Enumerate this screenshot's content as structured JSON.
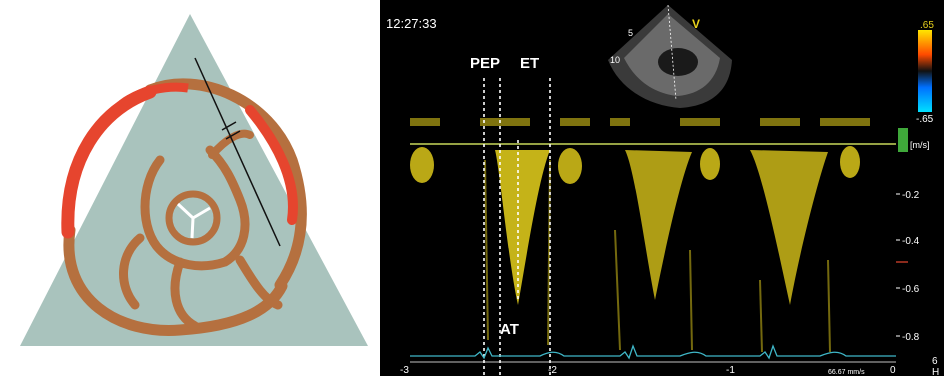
{
  "left_diagram": {
    "colors": {
      "background": "#ffffff",
      "triangle": "#a9c3bd",
      "red_wall": "#e6452e",
      "brown_wall": "#b5703f",
      "line": "#111111"
    }
  },
  "doppler": {
    "timestamp": "12:27:33",
    "probe_marker": "V",
    "depth_labels": [
      "5",
      "10"
    ],
    "labels": {
      "pep": "PEP",
      "et": "ET",
      "at": "AT"
    },
    "color_scale": {
      "top": ".65",
      "bottom": "-.65",
      "unit": "[m/s]"
    },
    "velocity_axis": [
      "-0.2",
      "-0.4",
      "-0.6",
      "-0.8"
    ],
    "time_axis": [
      "-3",
      "-2",
      "-1",
      "0"
    ],
    "sweep_speed": "66.67 mm/s",
    "heart_rate_fragment": "6",
    "heart_rate_unit_fragment": "H",
    "colors": {
      "background": "#000000",
      "spectrum": "#e8d21c",
      "baseline": "#c8d85a",
      "ecg": "#3fb7c8",
      "text": "#ffffff"
    }
  }
}
